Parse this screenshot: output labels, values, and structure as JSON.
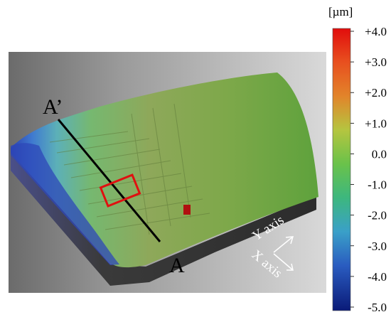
{
  "figure": {
    "section_start_label": "A’",
    "section_end_label": "A",
    "x_axis_label": "X axis",
    "y_axis_label": "Y axis"
  },
  "colorbar": {
    "unit": "[µm]",
    "ticks": [
      "+4.0",
      "+3.0",
      "+2.0",
      "+1.0",
      "0.0",
      "-1.0",
      "-2.0",
      "-3.0",
      "-4.0",
      "-5.0"
    ],
    "colors": [
      "#e10d0c",
      "#e8501f",
      "#e2842a",
      "#a9c845",
      "#64c14b",
      "#3fb575",
      "#3fa7c4",
      "#2f6ec4",
      "#1f3aa6",
      "#0a1a78"
    ]
  },
  "highlight_color": "#e01010"
}
